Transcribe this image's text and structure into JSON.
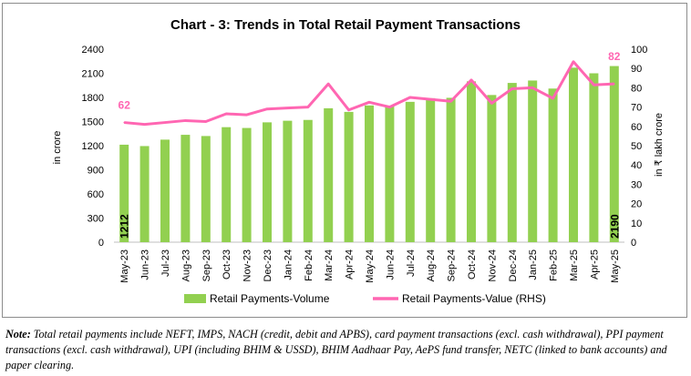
{
  "chart_data": {
    "type": "bar+line",
    "title": "Chart - 3: Trends in Total Retail Payment Transactions",
    "categories": [
      "May-23",
      "Jun-23",
      "Jul-23",
      "Aug-23",
      "Sep-23",
      "Oct-23",
      "Nov-23",
      "Dec-23",
      "Jan-24",
      "Feb-24",
      "Mar-24",
      "Apr-24",
      "May-24",
      "Jun-24",
      "Jul-24",
      "Aug-24",
      "Sep-24",
      "Oct-24",
      "Nov-24",
      "Dec-24",
      "Jan-25",
      "Feb-25",
      "Mar-25",
      "Apr-25",
      "May-25"
    ],
    "series": [
      {
        "name": "Retail Payments-Volume",
        "type": "bar",
        "axis": "left",
        "color": "#92d050",
        "values": [
          1212,
          1195,
          1275,
          1335,
          1320,
          1430,
          1420,
          1490,
          1510,
          1520,
          1665,
          1620,
          1700,
          1690,
          1745,
          1790,
          1795,
          2000,
          1830,
          1980,
          2010,
          1910,
          2170,
          2100,
          2190
        ]
      },
      {
        "name": "Retail Payments-Value (RHS)",
        "type": "line",
        "axis": "right",
        "color": "#ff66b2",
        "values": [
          62,
          61,
          62,
          63,
          62.5,
          66.5,
          66,
          69,
          69.5,
          70,
          82,
          68.5,
          72.5,
          70,
          75,
          74,
          73,
          84,
          72,
          79.5,
          80,
          74.5,
          93.5,
          81.5,
          82
        ]
      }
    ],
    "ylabel": "in crore",
    "y2label": "in ₹ lakh crore",
    "ylim": [
      0,
      2400
    ],
    "y2lim": [
      0,
      100
    ],
    "yticks": [
      "0",
      "300",
      "600",
      "900",
      "1200",
      "1500",
      "1800",
      "2100",
      "2400"
    ],
    "y2ticks": [
      "0",
      "10",
      "20",
      "30",
      "40",
      "50",
      "60",
      "70",
      "80",
      "90",
      "100"
    ],
    "annotations": {
      "first_bar_label": "1212",
      "last_bar_label": "2190",
      "first_line_label": "62",
      "last_line_label": "82"
    },
    "legend_position": "bottom"
  },
  "note": {
    "label": "Note:",
    "text": "Total retail payments include NEFT, IMPS, NACH (credit, debit and APBS), card payment transactions (excl. cash withdrawal), PPI payment transactions (excl. cash withdrawal), UPI (including BHIM & USSD), BHIM Aadhaar Pay, AePS fund transfer, NETC (linked to bank accounts) and paper clearing."
  }
}
